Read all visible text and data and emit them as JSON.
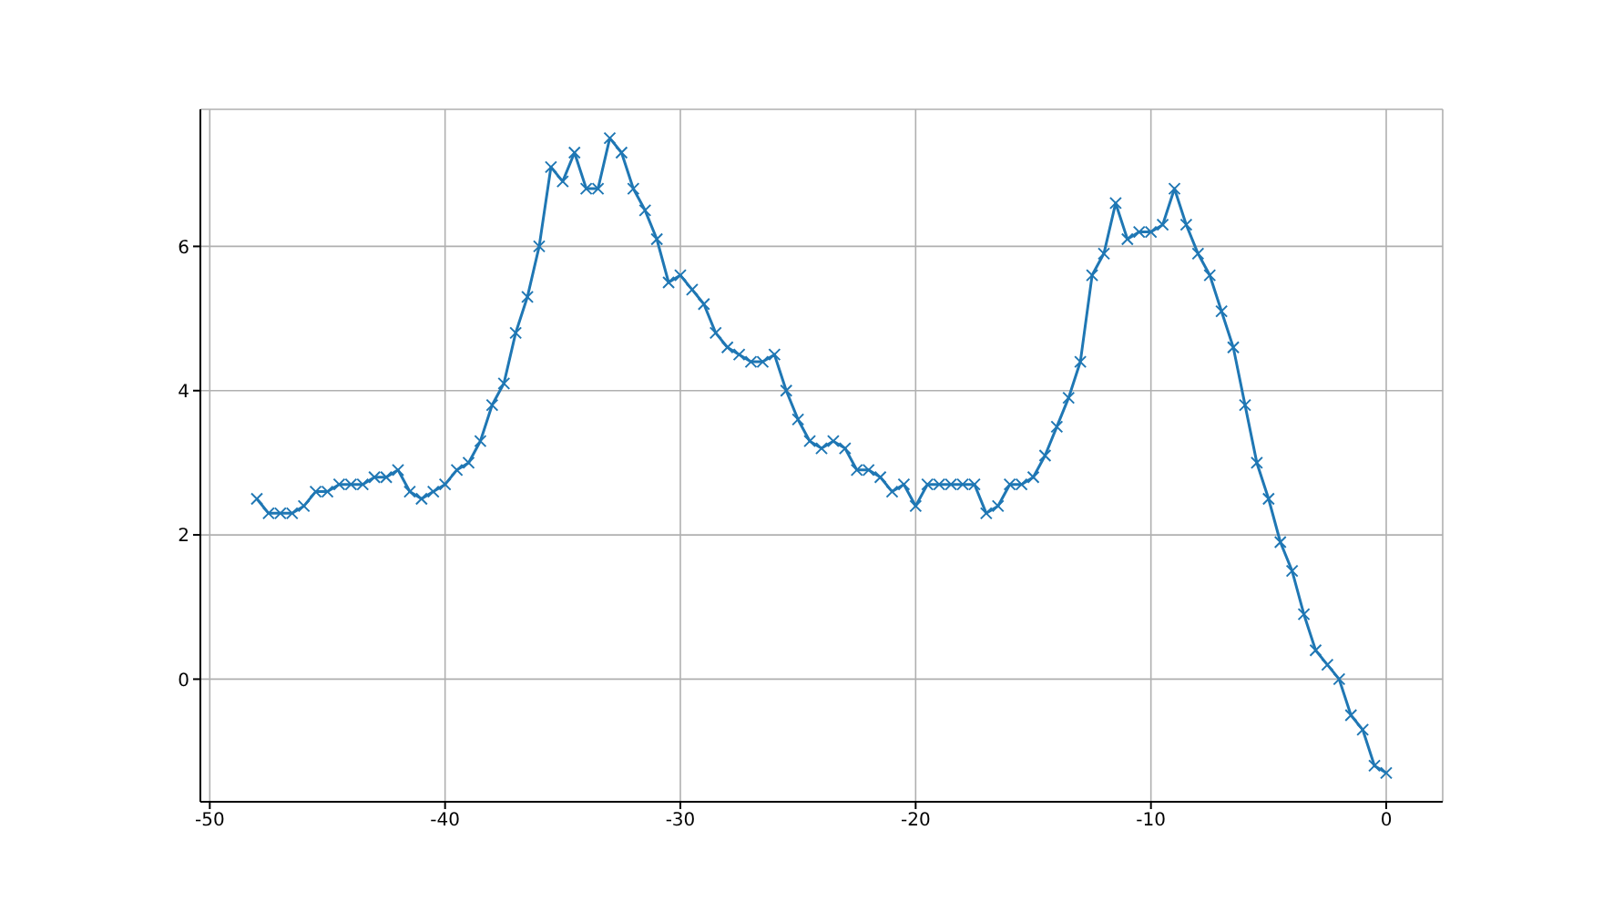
{
  "chart_data": {
    "type": "line",
    "x": [
      -48,
      -47.5,
      -47,
      -46.5,
      -46,
      -45.5,
      -45,
      -44.5,
      -44,
      -43.5,
      -43,
      -42.5,
      -42,
      -41.5,
      -41,
      -40.5,
      -40,
      -39.5,
      -39,
      -38.5,
      -38,
      -37.5,
      -37,
      -36.5,
      -36,
      -35.5,
      -35,
      -34.5,
      -34,
      -33.5,
      -33,
      -32.5,
      -32,
      -31.5,
      -31,
      -30.5,
      -30,
      -29.5,
      -29,
      -28.5,
      -28,
      -27.5,
      -27,
      -26.5,
      -26,
      -25.5,
      -25,
      -24.5,
      -24,
      -23.5,
      -23,
      -22.5,
      -22,
      -21.5,
      -21,
      -20.5,
      -20,
      -19.5,
      -19,
      -18.5,
      -18,
      -17.5,
      -17,
      -16.5,
      -16,
      -15.5,
      -15,
      -14.5,
      -14,
      -13.5,
      -13,
      -12.5,
      -12,
      -11.5,
      -11,
      -10.5,
      -10,
      -9.5,
      -9,
      -8.5,
      -8,
      -7.5,
      -7,
      -6.5,
      -6,
      -5.5,
      -5,
      -4.5,
      -4,
      -3.5,
      -3,
      -2.5,
      -2,
      -1.5,
      -1,
      -0.5,
      0
    ],
    "series": [
      {
        "color": "#1f77b4",
        "values": [
          2.5,
          2.3,
          2.3,
          2.3,
          2.4,
          2.6,
          2.6,
          2.7,
          2.7,
          2.7,
          2.8,
          2.8,
          2.9,
          2.6,
          2.5,
          2.6,
          2.7,
          2.9,
          3.0,
          3.3,
          3.8,
          4.1,
          4.8,
          5.3,
          6.0,
          7.1,
          6.9,
          7.3,
          6.8,
          6.8,
          7.5,
          7.3,
          6.8,
          6.5,
          6.1,
          5.5,
          5.6,
          5.4,
          5.2,
          4.8,
          4.6,
          4.5,
          4.4,
          4.4,
          4.5,
          4.0,
          3.6,
          3.3,
          3.2,
          3.3,
          3.2,
          2.9,
          2.9,
          2.8,
          2.6,
          2.7,
          2.4,
          2.7,
          2.7,
          2.7,
          2.7,
          2.7,
          2.3,
          2.4,
          2.7,
          2.7,
          2.8,
          3.1,
          3.5,
          3.9,
          4.4,
          5.6,
          5.9,
          6.6,
          6.1,
          6.2,
          6.2,
          6.3,
          6.8,
          6.3,
          5.9,
          5.6,
          5.1,
          4.6,
          3.8,
          3.0,
          2.5,
          1.9,
          1.5,
          0.9,
          0.4,
          0.2,
          0.0,
          -0.5,
          -0.7,
          -1.2,
          -1.3
        ]
      }
    ],
    "xlim": [
      -50.4,
      2.4
    ],
    "ylim": [
      -1.7,
      7.9
    ],
    "xticks": [
      -50,
      -40,
      -30,
      -20,
      -10,
      0
    ],
    "yticks": [
      0,
      2,
      4,
      6
    ],
    "grid": true,
    "marker": "cross",
    "line_style": "solid"
  }
}
